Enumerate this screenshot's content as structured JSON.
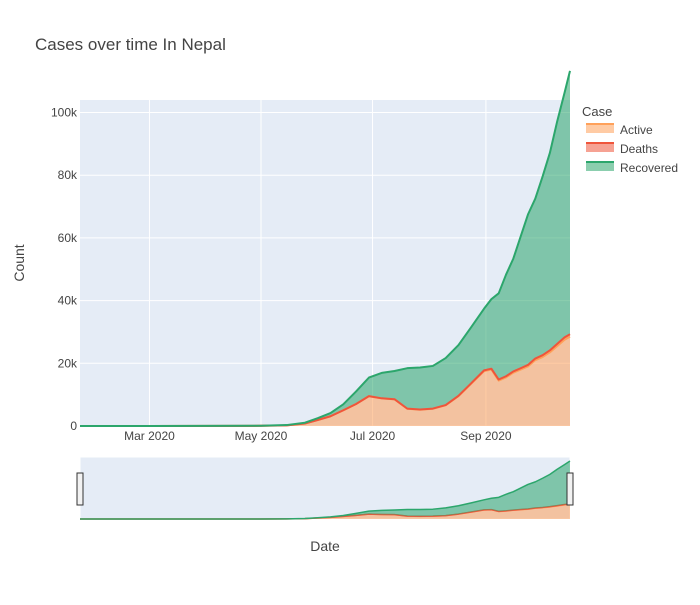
{
  "chart_data": {
    "type": "area",
    "title": "Cases over time In Nepal",
    "xlabel": "Date",
    "ylabel": "Count",
    "x_range": [
      "2020-01-23",
      "2020-10-17"
    ],
    "ylim": [
      0,
      104000
    ],
    "x_ticks": [
      {
        "date": "2020-03-01",
        "label": "Mar 2020"
      },
      {
        "date": "2020-05-01",
        "label": "May 2020"
      },
      {
        "date": "2020-07-01",
        "label": "Jul 2020"
      },
      {
        "date": "2020-09-01",
        "label": "Sep 2020"
      }
    ],
    "y_ticks": [
      {
        "value": 0,
        "label": "0"
      },
      {
        "value": 20000,
        "label": "20k"
      },
      {
        "value": 40000,
        "label": "40k"
      },
      {
        "value": 60000,
        "label": "60k"
      },
      {
        "value": 80000,
        "label": "80k"
      },
      {
        "value": 100000,
        "label": "100k"
      }
    ],
    "legend": {
      "title": "Case",
      "position": "top-right"
    },
    "stacked": true,
    "range_slider": true,
    "x": [
      "2020-01-23",
      "2020-03-01",
      "2020-05-01",
      "2020-05-15",
      "2020-05-25",
      "2020-06-01",
      "2020-06-08",
      "2020-06-15",
      "2020-06-22",
      "2020-06-29",
      "2020-07-06",
      "2020-07-13",
      "2020-07-20",
      "2020-07-27",
      "2020-08-03",
      "2020-08-10",
      "2020-08-17",
      "2020-08-24",
      "2020-08-31",
      "2020-09-04",
      "2020-09-08",
      "2020-09-12",
      "2020-09-16",
      "2020-09-20",
      "2020-09-24",
      "2020-09-28",
      "2020-10-02",
      "2020-10-06",
      "2020-10-10",
      "2020-10-14",
      "2020-10-17"
    ],
    "series": [
      {
        "name": "Active",
        "color": "#ffa15a",
        "values": [
          0,
          1,
          60,
          200,
          800,
          1900,
          3100,
          5000,
          7000,
          9500,
          8800,
          8500,
          5500,
          5200,
          5500,
          6600,
          9500,
          13500,
          17500,
          18000,
          14500,
          15500,
          17000,
          18000,
          19000,
          21000,
          22000,
          23500,
          25500,
          27500,
          28500
        ]
      },
      {
        "name": "Deaths",
        "color": "#ef553b",
        "values": [
          0,
          0,
          0,
          0,
          2,
          8,
          15,
          22,
          28,
          35,
          38,
          40,
          45,
          52,
          60,
          80,
          120,
          170,
          240,
          280,
          330,
          370,
          400,
          430,
          470,
          520,
          580,
          640,
          700,
          760,
          790
        ]
      },
      {
        "name": "Recovered",
        "color": "#2ca66c",
        "values": [
          0,
          0,
          30,
          100,
          250,
          600,
          1000,
          1900,
          4000,
          5900,
          8100,
          9000,
          12900,
          13400,
          13600,
          15000,
          16200,
          17900,
          19700,
          22200,
          27500,
          32400,
          36000,
          42000,
          48000,
          51000,
          57000,
          63000,
          71000,
          78000,
          84000
        ]
      }
    ]
  }
}
